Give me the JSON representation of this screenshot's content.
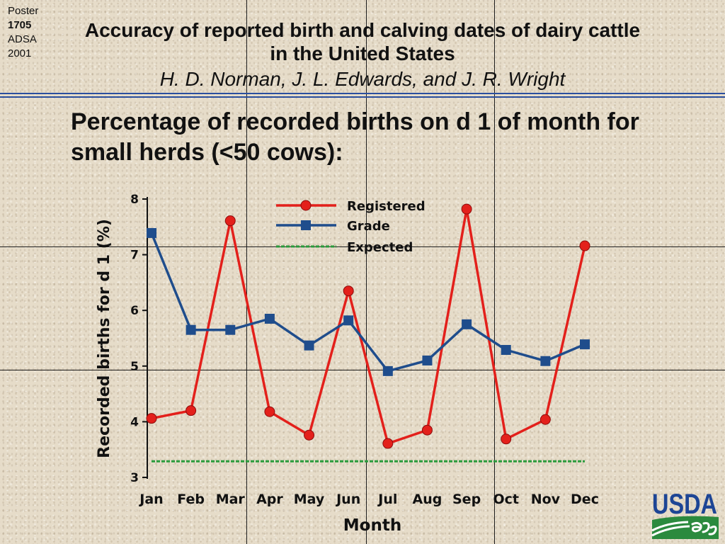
{
  "poster_tag": {
    "label": "Poster",
    "number": "1705",
    "org": "ADSA",
    "year": "2001"
  },
  "header": {
    "title_line1": "Accuracy of reported birth and calving dates of dairy cattle",
    "title_line2": "in the United States",
    "authors": "H. D. Norman, J. L. Edwards, and J. R. Wright"
  },
  "section": {
    "heading_line1": "Percentage of recorded births on d 1 of month for",
    "heading_line2": "small herds (<50 cows):"
  },
  "colors": {
    "background": "#e6dcc9",
    "rule": "#2b4f9e",
    "logo_blue": "#1d4595",
    "logo_green": "#2b8a3e"
  },
  "chart_data": {
    "type": "line",
    "xlabel": "Month",
    "ylabel": "Recorded births for d 1 (%)",
    "categories": [
      "Jan",
      "Feb",
      "Mar",
      "Apr",
      "May",
      "Jun",
      "Jul",
      "Aug",
      "Sep",
      "Oct",
      "Nov",
      "Dec"
    ],
    "ylim": [
      3,
      8
    ],
    "yticks": [
      3,
      4,
      5,
      6,
      7,
      8
    ],
    "grid": false,
    "legend": "top-center",
    "series": [
      {
        "name": "Registered",
        "color": "#e3201b",
        "marker": "circle",
        "line_style": "solid",
        "values": [
          4.06,
          4.2,
          7.61,
          4.18,
          3.76,
          6.35,
          3.61,
          3.85,
          7.82,
          3.69,
          4.04,
          7.16
        ]
      },
      {
        "name": "Grade",
        "color": "#1f4d8c",
        "marker": "square",
        "line_style": "solid",
        "values": [
          7.39,
          5.65,
          5.65,
          5.85,
          5.37,
          5.82,
          4.91,
          5.1,
          5.75,
          5.29,
          5.09,
          5.39
        ]
      },
      {
        "name": "Expected",
        "color": "#2a9b3c",
        "marker": "none",
        "line_style": "dashed",
        "values": [
          3.29,
          3.29,
          3.29,
          3.29,
          3.29,
          3.29,
          3.29,
          3.29,
          3.29,
          3.29,
          3.29,
          3.29
        ]
      }
    ]
  },
  "logo": {
    "text": "USDA"
  }
}
